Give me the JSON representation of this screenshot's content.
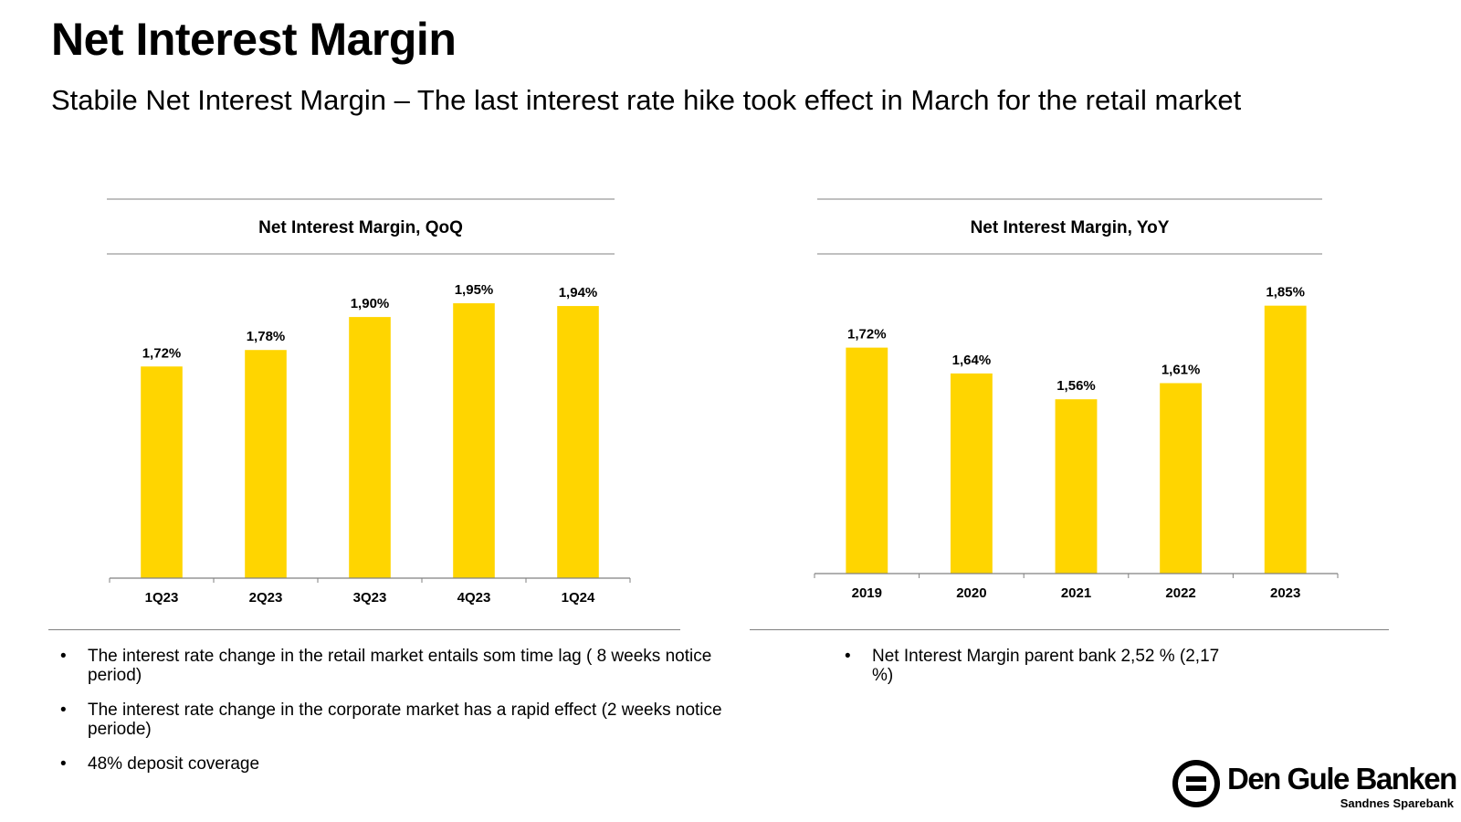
{
  "header": {
    "title": "Net Interest Margin",
    "subtitle": "Stabile Net Interest Margin – The last interest rate hike took effect in March for the retail market"
  },
  "chart_data": [
    {
      "type": "bar",
      "title": "Net Interest Margin, QoQ",
      "categories": [
        "1Q23",
        "2Q23",
        "3Q23",
        "4Q23",
        "1Q24"
      ],
      "values": [
        1.72,
        1.78,
        1.9,
        1.95,
        1.94
      ],
      "labels": [
        "1,72%",
        "1,78%",
        "1,90%",
        "1,95%",
        "1,94%"
      ],
      "xlabel": "",
      "ylabel": "",
      "ylim": [
        0.95,
        2.0
      ],
      "bar_color": "#FFD500"
    },
    {
      "type": "bar",
      "title": "Net Interest Margin, YoY",
      "categories": [
        "2019",
        "2020",
        "2021",
        "2022",
        "2023"
      ],
      "values": [
        1.72,
        1.64,
        1.56,
        1.61,
        1.85
      ],
      "labels": [
        "1,72%",
        "1,64%",
        "1,56%",
        "1,61%",
        "1,85%"
      ],
      "xlabel": "",
      "ylabel": "",
      "ylim": [
        1.02,
        1.9
      ],
      "bar_color": "#FFD500"
    }
  ],
  "notes_left": [
    "The interest rate change in the retail market entails som time lag ( 8 weeks notice period)",
    "The interest rate change in the corporate market has a rapid effect (2 weeks notice periode)",
    "48% deposit coverage"
  ],
  "notes_right": [
    "Net Interest Margin parent bank 2,52 % (2,17 %)"
  ],
  "bullet_char": "•",
  "logo": {
    "name": "Den Gule Banken",
    "sub": "Sandnes Sparebank"
  }
}
